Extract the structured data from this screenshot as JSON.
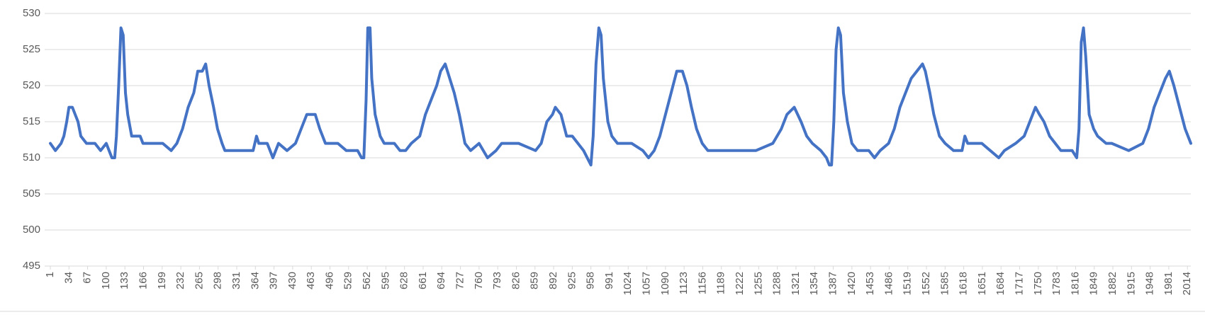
{
  "chart_data": {
    "type": "line",
    "color": "#4472c4",
    "grid": true,
    "ylim": [
      495,
      530
    ],
    "yticks": [
      495,
      500,
      505,
      510,
      515,
      520,
      525,
      530
    ],
    "xlim": [
      1,
      2020
    ],
    "xticks": [
      1,
      34,
      67,
      100,
      133,
      166,
      199,
      232,
      265,
      298,
      331,
      364,
      397,
      430,
      463,
      496,
      529,
      562,
      595,
      628,
      661,
      694,
      727,
      760,
      793,
      826,
      859,
      892,
      925,
      958,
      991,
      1024,
      1057,
      1090,
      1123,
      1156,
      1189,
      1222,
      1255,
      1288,
      1321,
      1354,
      1387,
      1420,
      1453,
      1486,
      1519,
      1552,
      1585,
      1618,
      1651,
      1684,
      1717,
      1750,
      1783,
      1816,
      1849,
      1882,
      1915,
      1948,
      1981,
      2014
    ],
    "x": [
      1,
      10,
      20,
      25,
      30,
      34,
      40,
      45,
      50,
      55,
      65,
      80,
      90,
      100,
      110,
      115,
      118,
      122,
      126,
      130,
      134,
      138,
      145,
      160,
      165,
      180,
      200,
      215,
      225,
      235,
      245,
      255,
      262,
      270,
      276,
      282,
      290,
      297,
      305,
      310,
      330,
      360,
      366,
      370,
      385,
      395,
      405,
      420,
      435,
      445,
      455,
      470,
      478,
      488,
      510,
      525,
      545,
      552,
      556,
      560,
      563,
      567,
      570,
      576,
      585,
      592,
      610,
      620,
      630,
      640,
      655,
      665,
      675,
      685,
      692,
      700,
      708,
      716,
      725,
      735,
      745,
      760,
      775,
      790,
      800,
      830,
      860,
      870,
      880,
      890,
      895,
      905,
      915,
      925,
      935,
      945,
      958,
      962,
      967,
      972,
      976,
      980,
      988,
      995,
      1005,
      1030,
      1050,
      1060,
      1070,
      1080,
      1090,
      1100,
      1110,
      1120,
      1128,
      1136,
      1145,
      1155,
      1165,
      1190,
      1220,
      1250,
      1280,
      1295,
      1305,
      1318,
      1330,
      1340,
      1350,
      1365,
      1375,
      1380,
      1384,
      1388,
      1392,
      1396,
      1400,
      1405,
      1412,
      1420,
      1430,
      1450,
      1460,
      1470,
      1485,
      1495,
      1505,
      1515,
      1525,
      1535,
      1545,
      1550,
      1558,
      1565,
      1575,
      1585,
      1600,
      1615,
      1620,
      1625,
      1650,
      1665,
      1680,
      1690,
      1710,
      1725,
      1735,
      1745,
      1752,
      1760,
      1770,
      1780,
      1790,
      1810,
      1818,
      1822,
      1826,
      1830,
      1834,
      1840,
      1848,
      1855,
      1870,
      1880,
      1910,
      1935,
      1945,
      1955,
      1965,
      1975,
      1982,
      1990,
      2000,
      2010,
      2020
    ],
    "values": [
      512,
      511,
      512,
      513,
      515,
      517,
      517,
      516,
      515,
      513,
      512,
      512,
      511,
      512,
      510,
      510,
      513,
      520,
      528,
      527,
      519,
      516,
      513,
      513,
      512,
      512,
      512,
      511,
      512,
      514,
      517,
      519,
      522,
      522,
      523,
      520,
      517,
      514,
      512,
      511,
      511,
      511,
      513,
      512,
      512,
      510,
      512,
      511,
      512,
      514,
      516,
      516,
      514,
      512,
      512,
      511,
      511,
      510,
      510,
      518,
      528,
      528,
      521,
      516,
      513,
      512,
      512,
      511,
      511,
      512,
      513,
      516,
      518,
      520,
      522,
      523,
      521,
      519,
      516,
      512,
      511,
      512,
      510,
      511,
      512,
      512,
      511,
      512,
      515,
      516,
      517,
      516,
      513,
      513,
      512,
      511,
      509,
      513,
      523,
      528,
      527,
      521,
      515,
      513,
      512,
      512,
      511,
      510,
      511,
      513,
      516,
      519,
      522,
      522,
      520,
      517,
      514,
      512,
      511,
      511,
      511,
      511,
      512,
      514,
      516,
      517,
      515,
      513,
      512,
      511,
      510,
      509,
      509,
      515,
      525,
      528,
      527,
      519,
      515,
      512,
      511,
      511,
      510,
      511,
      512,
      514,
      517,
      519,
      521,
      522,
      523,
      522,
      519,
      516,
      513,
      512,
      511,
      511,
      513,
      512,
      512,
      511,
      510,
      511,
      512,
      513,
      515,
      517,
      516,
      515,
      513,
      512,
      511,
      511,
      510,
      514,
      526,
      528,
      524,
      516,
      514,
      513,
      512,
      512,
      511,
      512,
      514,
      517,
      519,
      521,
      522,
      520,
      517,
      514,
      512
    ]
  }
}
